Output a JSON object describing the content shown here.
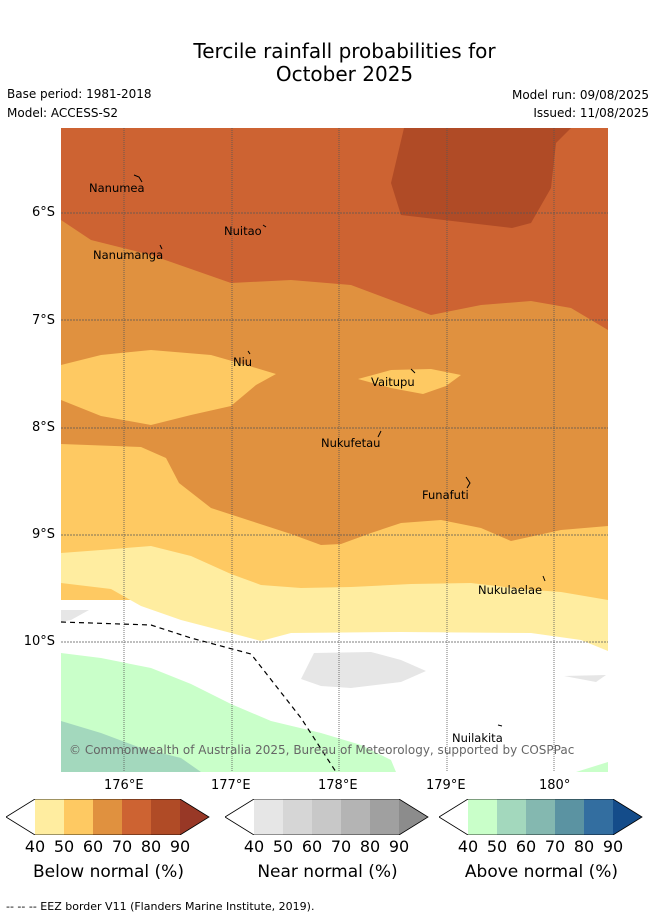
{
  "title_line1": "Tercile rainfall probabilities for",
  "title_line2": "October 2025",
  "base_period": "Base period: 1981-2018",
  "model": "Model: ACCESS-S2",
  "model_run": "Model run: 09/08/2025",
  "issued": "Issued: 11/08/2025",
  "lat_ticks": [
    "6°S",
    "7°S",
    "8°S",
    "9°S",
    "10°S"
  ],
  "lon_ticks": [
    "176°E",
    "177°E",
    "178°E",
    "179°E",
    "180°"
  ],
  "places": [
    "Nanumea",
    "Nuitao",
    "Nanumanga",
    "Niu",
    "Vaitupu",
    "Nukufetau",
    "Funafuti",
    "Nukulaelae",
    "Nuilakita"
  ],
  "copyright": "© Commonwealth of Australia 2025, Bureau of Meteorology, supported by COSPPac",
  "colorbars": [
    {
      "title": "Below normal (%)",
      "ticks": [
        "40",
        "50",
        "60",
        "70",
        "80",
        "90"
      ],
      "colors": [
        "#ffffff",
        "#ffeda0",
        "#fec962",
        "#e0913f",
        "#cd6332",
        "#b04b26",
        "#983826"
      ]
    },
    {
      "title": "Near normal (%)",
      "ticks": [
        "40",
        "50",
        "60",
        "70",
        "80",
        "90"
      ],
      "colors": [
        "#ffffff",
        "#e6e6e6",
        "#d6d6d6",
        "#c8c8c8",
        "#b4b4b4",
        "#a0a0a0",
        "#8c8c8c"
      ]
    },
    {
      "title": "Above normal (%)",
      "ticks": [
        "40",
        "50",
        "60",
        "70",
        "80",
        "90"
      ],
      "colors": [
        "#ffffff",
        "#c9ffc9",
        "#a3d8bd",
        "#84b8b0",
        "#5b93a2",
        "#336ea0",
        "#144c8a"
      ]
    }
  ],
  "footer": "--  --  -- EEZ border V11 (Flanders Marine Institute, 2019)."
}
